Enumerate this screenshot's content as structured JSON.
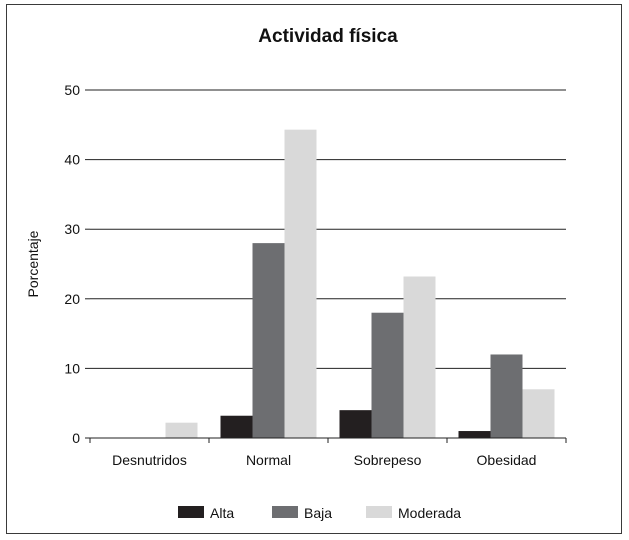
{
  "chart_data": {
    "type": "bar",
    "title": "Actividad física",
    "xlabel": "",
    "ylabel": "Porcentaje",
    "ylim": [
      0,
      50
    ],
    "yticks": [
      0,
      10,
      20,
      30,
      40,
      50
    ],
    "grid": true,
    "legend_position": "bottom",
    "categories": [
      "Desnutridos",
      "Normal",
      "Sobrepeso",
      "Obesidad"
    ],
    "series": [
      {
        "name": "Alta",
        "color": "#231f20",
        "values": [
          0,
          3.2,
          4,
          1
        ]
      },
      {
        "name": "Baja",
        "color": "#6d6e71",
        "values": [
          0,
          28,
          18,
          12
        ]
      },
      {
        "name": "Moderada",
        "color": "#d9d9d9",
        "values": [
          2.2,
          44.3,
          23.2,
          7
        ]
      }
    ]
  }
}
